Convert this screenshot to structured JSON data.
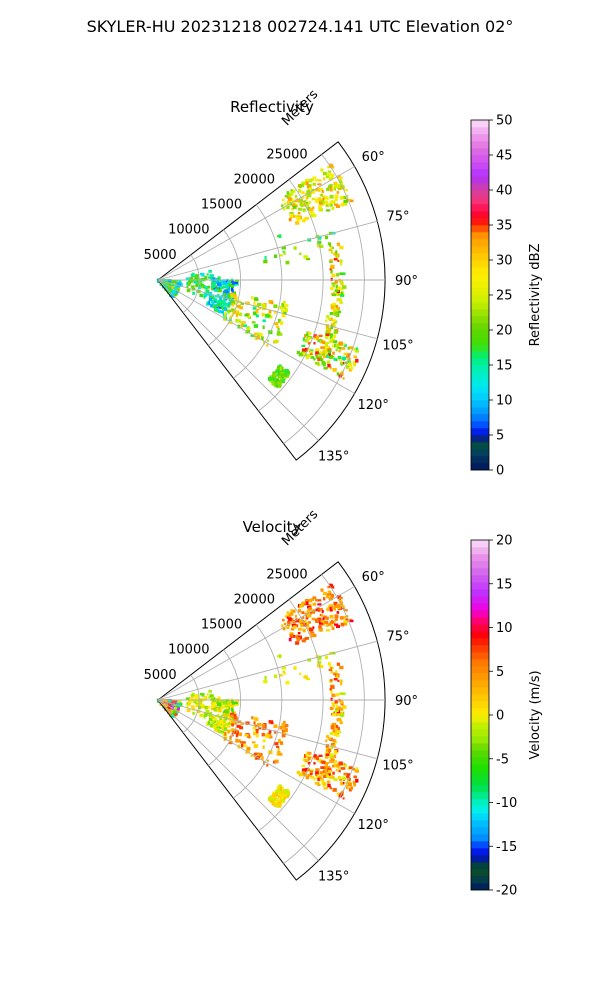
{
  "figure": {
    "suptitle": "SKYLER-HU  20231218  002724.141 UTC Elevation 02°"
  },
  "chart_data": [
    {
      "type": "heatmap",
      "subtype": "polar-sector radar PPI",
      "title": "Reflectivity",
      "r_axis_label": "Meters",
      "r_range": [
        0,
        27500
      ],
      "r_ticks": [
        5000,
        10000,
        15000,
        20000,
        25000
      ],
      "theta_range_deg": [
        52.5,
        142.5
      ],
      "theta_ticks_deg": [
        60,
        75,
        90,
        105,
        120,
        135
      ],
      "theta_tick_labels": [
        "60°",
        "75°",
        "90°",
        "105°",
        "120°",
        "135°"
      ],
      "grid": true,
      "colorbar": {
        "label": "Reflectivity dBZ",
        "min": 0,
        "max": 50,
        "ticks": [
          0,
          5,
          10,
          15,
          20,
          25,
          30,
          35,
          40,
          45,
          50
        ],
        "stops": [
          [
            0,
            "#00155e"
          ],
          [
            2,
            "#00335e"
          ],
          [
            3,
            "#00505a"
          ],
          [
            4,
            "#0a4a2e"
          ],
          [
            5,
            "#0000d8"
          ],
          [
            6,
            "#0040ff"
          ],
          [
            8,
            "#0090ff"
          ],
          [
            10,
            "#00c8ff"
          ],
          [
            12,
            "#00e8f0"
          ],
          [
            14,
            "#00f0c0"
          ],
          [
            16,
            "#00f080"
          ],
          [
            18,
            "#40e000"
          ],
          [
            20,
            "#60d400"
          ],
          [
            22,
            "#90e000"
          ],
          [
            24,
            "#c8f000"
          ],
          [
            26,
            "#e8f000"
          ],
          [
            28,
            "#ffee00"
          ],
          [
            30,
            "#ffd000"
          ],
          [
            32,
            "#ffb000"
          ],
          [
            34,
            "#ff8800"
          ],
          [
            35,
            "#ff2000"
          ],
          [
            37,
            "#ff0040"
          ],
          [
            38,
            "#ff3070"
          ],
          [
            40,
            "#d040a0"
          ],
          [
            42,
            "#b030ff"
          ],
          [
            44,
            "#d050f0"
          ],
          [
            46,
            "#e070e0"
          ],
          [
            48,
            "#f0a0f0"
          ],
          [
            50,
            "#fbe0fb"
          ]
        ]
      },
      "features": [
        {
          "kind": "blob",
          "theta": [
            92,
            141
          ],
          "r": [
            0,
            2800
          ],
          "value": [
            9,
            24
          ],
          "density": 0.7
        },
        {
          "kind": "blob",
          "theta": [
            88,
            118
          ],
          "r": [
            6500,
            9500
          ],
          "value": [
            6,
            20
          ],
          "density": 0.55
        },
        {
          "kind": "blob",
          "theta": [
            80,
            112
          ],
          "r": [
            3500,
            6500
          ],
          "value": [
            12,
            22
          ],
          "density": 0.25
        },
        {
          "kind": "arc",
          "theta": [
            100,
            121
          ],
          "r": [
            9000,
            16500
          ],
          "value": [
            15,
            34
          ],
          "density": 0.6
        },
        {
          "kind": "line",
          "theta": [
            78,
            117
          ],
          "r": [
            21000,
            22500
          ],
          "value": [
            17,
            36
          ],
          "density": 0.7
        },
        {
          "kind": "blob",
          "theta": [
            56,
            68
          ],
          "r": [
            17500,
            25500
          ],
          "value": [
            20,
            34
          ],
          "density": 0.7
        },
        {
          "kind": "arc",
          "theta": [
            109,
            118
          ],
          "r": [
            19000,
            26000
          ],
          "value": [
            15,
            36
          ],
          "density": 0.65
        },
        {
          "kind": "blob",
          "theta": [
            70,
            83
          ],
          "r": [
            12000,
            22000
          ],
          "value": [
            14,
            26
          ],
          "density": 0.08
        },
        {
          "kind": "blob",
          "theta": [
            125,
            132
          ],
          "r": [
            18000,
            19500
          ],
          "value": [
            16,
            24
          ],
          "density": 0.5
        }
      ]
    },
    {
      "type": "heatmap",
      "subtype": "polar-sector radar PPI",
      "title": "Velocity",
      "r_axis_label": "Meters",
      "r_range": [
        0,
        27500
      ],
      "r_ticks": [
        5000,
        10000,
        15000,
        20000,
        25000
      ],
      "theta_range_deg": [
        52.5,
        142.5
      ],
      "theta_ticks_deg": [
        60,
        75,
        90,
        105,
        120,
        135
      ],
      "theta_tick_labels": [
        "60°",
        "75°",
        "90°",
        "105°",
        "120°",
        "135°"
      ],
      "grid": true,
      "colorbar": {
        "label": "Velocity (m/s)",
        "min": -20,
        "max": 20,
        "ticks": [
          -20,
          -15,
          -10,
          -5,
          0,
          5,
          10,
          15,
          20
        ],
        "stops": [
          [
            -20,
            "#00155e"
          ],
          [
            -19,
            "#003a50"
          ],
          [
            -18,
            "#0a4a2e"
          ],
          [
            -17,
            "#004040"
          ],
          [
            -16,
            "#0000e0"
          ],
          [
            -15,
            "#0040ff"
          ],
          [
            -14,
            "#0090ff"
          ],
          [
            -12,
            "#00c8ff"
          ],
          [
            -11,
            "#00f0f0"
          ],
          [
            -10,
            "#00f0c0"
          ],
          [
            -8,
            "#00e040"
          ],
          [
            -6,
            "#20e000"
          ],
          [
            -4,
            "#60d800"
          ],
          [
            -3,
            "#90e800"
          ],
          [
            -1,
            "#c8f000"
          ],
          [
            0,
            "#ffee00"
          ],
          [
            2,
            "#ffc800"
          ],
          [
            4,
            "#ffa000"
          ],
          [
            6,
            "#ff7800"
          ],
          [
            8,
            "#ff3000"
          ],
          [
            9,
            "#ff0000"
          ],
          [
            10,
            "#ff0040"
          ],
          [
            11,
            "#ff0080"
          ],
          [
            12,
            "#f000e0"
          ],
          [
            14,
            "#c030ff"
          ],
          [
            16,
            "#d060f0"
          ],
          [
            18,
            "#e890e8"
          ],
          [
            20,
            "#fbe0fb"
          ]
        ]
      },
      "features": [
        {
          "kind": "blob",
          "theta": [
            92,
            141
          ],
          "r": [
            0,
            2800
          ],
          "value": [
            -10,
            17
          ],
          "density": 0.7
        },
        {
          "kind": "blob",
          "theta": [
            88,
            118
          ],
          "r": [
            6500,
            9500
          ],
          "value": [
            -5,
            2
          ],
          "density": 0.55
        },
        {
          "kind": "blob",
          "theta": [
            80,
            112
          ],
          "r": [
            3500,
            6500
          ],
          "value": [
            -4,
            2
          ],
          "density": 0.25
        },
        {
          "kind": "arc",
          "theta": [
            100,
            121
          ],
          "r": [
            9000,
            16500
          ],
          "value": [
            0,
            9
          ],
          "density": 0.6
        },
        {
          "kind": "line",
          "theta": [
            78,
            117
          ],
          "r": [
            21000,
            22500
          ],
          "value": [
            -2,
            9
          ],
          "density": 0.7
        },
        {
          "kind": "blob",
          "theta": [
            56,
            68
          ],
          "r": [
            17500,
            25500
          ],
          "value": [
            1,
            10
          ],
          "density": 0.7
        },
        {
          "kind": "arc",
          "theta": [
            109,
            118
          ],
          "r": [
            19000,
            26000
          ],
          "value": [
            -1,
            9
          ],
          "density": 0.65
        },
        {
          "kind": "blob",
          "theta": [
            70,
            83
          ],
          "r": [
            12000,
            22000
          ],
          "value": [
            -3,
            2
          ],
          "density": 0.08
        },
        {
          "kind": "blob",
          "theta": [
            125,
            132
          ],
          "r": [
            18000,
            19500
          ],
          "value": [
            -2,
            3
          ],
          "density": 0.5
        }
      ]
    }
  ]
}
